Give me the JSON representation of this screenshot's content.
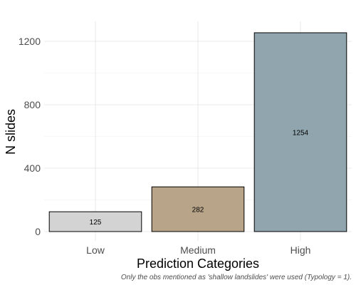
{
  "chart_data": {
    "type": "bar",
    "categories": [
      "Low",
      "Medium",
      "High"
    ],
    "values": [
      125,
      282,
      1254
    ],
    "colors": [
      "#d3d3d3",
      "#b8a488",
      "#90a5ad"
    ],
    "xlabel": "Prediction Categories",
    "ylabel": "N slides",
    "ylim": [
      0,
      1320
    ],
    "yticks": [
      0,
      400,
      800,
      1200
    ],
    "grid": true,
    "caption": "Only the obs mentioned as 'shallow landslides' were used (Typology = 1)."
  }
}
